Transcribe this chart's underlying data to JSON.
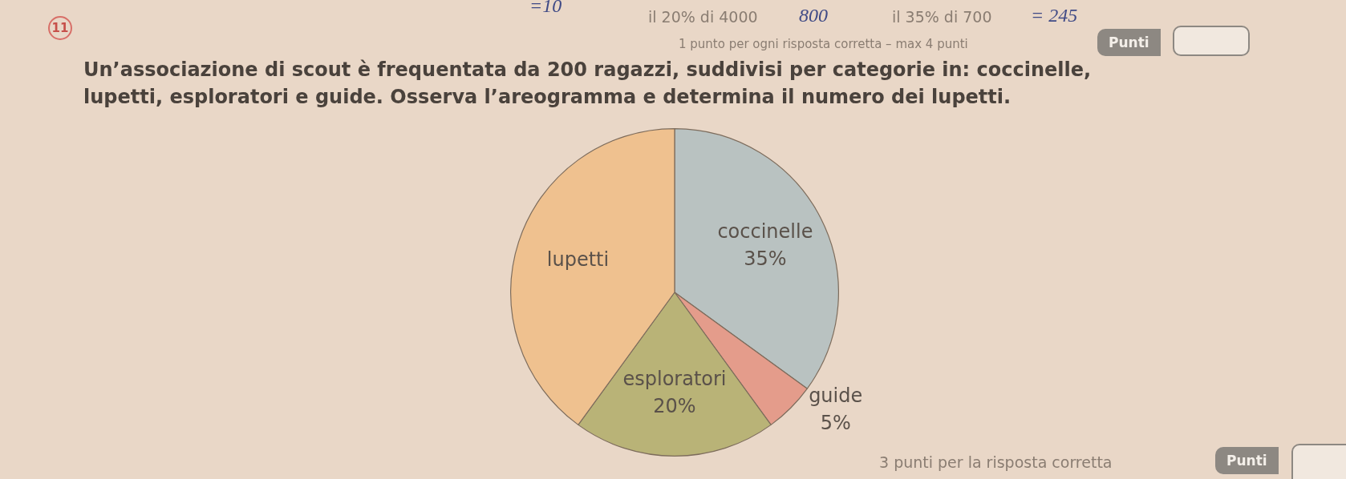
{
  "chart_data": {
    "type": "pie",
    "title": "Un’associazione di scout è frequentata da 200 ragazzi, suddivisi per categorie in: coccinelle, lupetti, esploratori e guide. Osserva l’areogramma e determina il numero dei lupetti.",
    "categories": [
      "coccinelle",
      "guide",
      "esploratori",
      "lupetti"
    ],
    "values": [
      35,
      5,
      20,
      40
    ],
    "value_labels": [
      "35%",
      "5%",
      "20%",
      null
    ],
    "colors": [
      "#b9c2c1",
      "#e49c8b",
      "#b9b377",
      "#efc18f"
    ],
    "legend": false,
    "annotations": [
      "11",
      "=10",
      "il 20% di 4000",
      "800",
      "il 35% di 700",
      "= 245",
      "1 punto per ogni risposta corretta – max 4 punti",
      "Punti",
      "3 punti per la risposta corretta",
      "Punti"
    ]
  }
}
